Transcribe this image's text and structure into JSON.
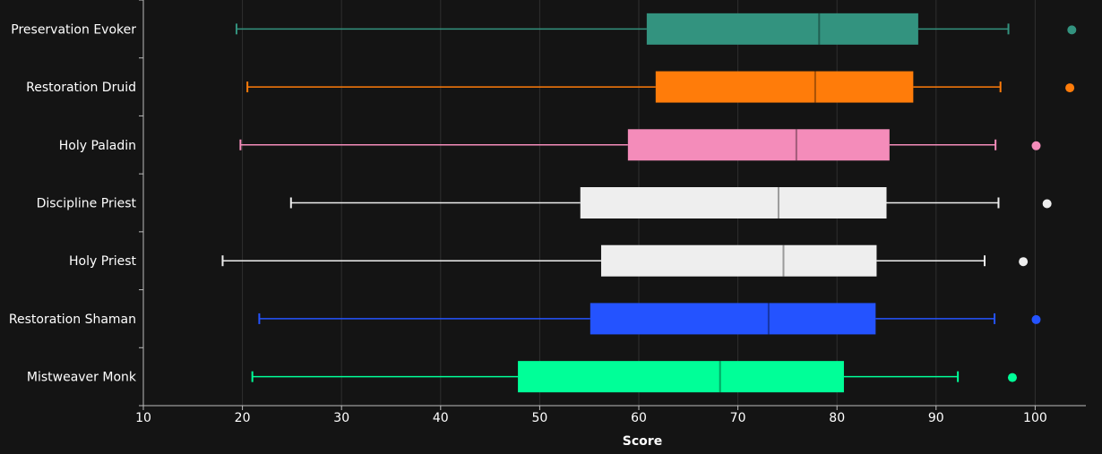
{
  "chart_data": {
    "type": "box",
    "orientation": "horizontal",
    "xlabel": "Score",
    "ylabel": "",
    "xlim": [
      10,
      103.5
    ],
    "x_ticks": [
      10,
      20,
      30,
      40,
      50,
      60,
      70,
      80,
      90,
      100
    ],
    "grid": true,
    "legend": "none",
    "categories": [
      "Preservation Evoker",
      "Restoration Druid",
      "Holy Paladin",
      "Discipline Priest",
      "Holy Priest",
      "Restoration Shaman",
      "Mistweaver Monk"
    ],
    "series": [
      {
        "category": "Preservation Evoker",
        "color": "#33937f",
        "min": 19.4,
        "q1": 60.8,
        "median": 78.2,
        "q3": 88.2,
        "max": 97.3,
        "outliers": [
          103.7
        ]
      },
      {
        "category": "Restoration Druid",
        "color": "#ff7c0a",
        "min": 20.5,
        "q1": 61.7,
        "median": 77.8,
        "q3": 87.7,
        "max": 96.5,
        "outliers": [
          103.5
        ]
      },
      {
        "category": "Holy Paladin",
        "color": "#f48cba",
        "min": 19.8,
        "q1": 58.9,
        "median": 75.9,
        "q3": 85.3,
        "max": 96.0,
        "outliers": [
          100.1
        ]
      },
      {
        "category": "Discipline Priest",
        "color": "#eeeeee",
        "min": 24.9,
        "q1": 54.1,
        "median": 74.1,
        "q3": 85.0,
        "max": 96.3,
        "outliers": [
          101.2
        ]
      },
      {
        "category": "Holy Priest",
        "color": "#eeeeee",
        "min": 18.0,
        "q1": 56.2,
        "median": 74.6,
        "q3": 84.0,
        "max": 94.9,
        "outliers": [
          98.8
        ]
      },
      {
        "category": "Restoration Shaman",
        "color": "#2453ff",
        "min": 21.7,
        "q1": 55.1,
        "median": 73.1,
        "q3": 83.9,
        "max": 95.9,
        "outliers": [
          100.1
        ]
      },
      {
        "category": "Mistweaver Monk",
        "color": "#00ff98",
        "min": 21.0,
        "q1": 47.8,
        "median": 68.2,
        "q3": 80.7,
        "max": 92.2,
        "outliers": [
          97.7
        ]
      }
    ]
  }
}
